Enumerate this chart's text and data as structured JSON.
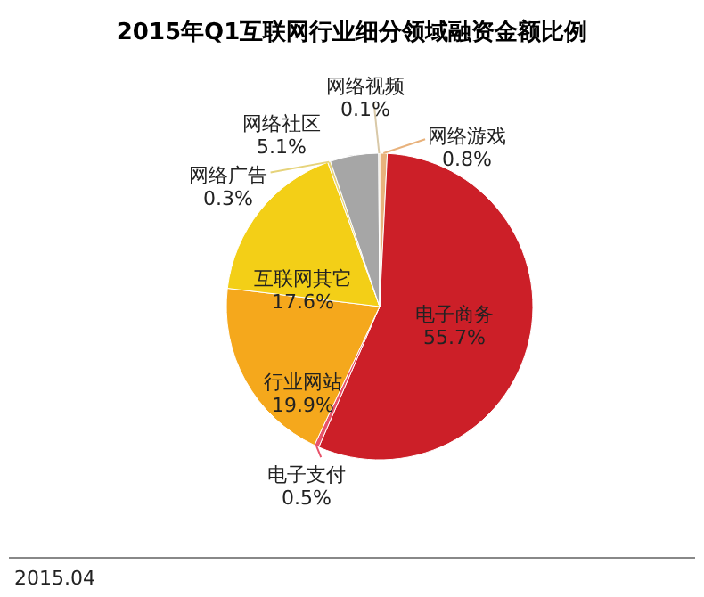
{
  "chart_data": {
    "type": "pie",
    "title": "2015年Q1互联网行业细分领域融资金额比例",
    "categories": [
      "网络游戏",
      "电子商务",
      "电子支付",
      "行业网站",
      "互联网其它",
      "网络广告",
      "网络社区",
      "网络视频"
    ],
    "values": [
      0.8,
      55.7,
      0.5,
      19.9,
      17.6,
      0.3,
      5.1,
      0.1
    ],
    "colors": [
      "#e8b27c",
      "#cc1f28",
      "#e8536a",
      "#f5a81c",
      "#f3cf17",
      "#e6d37a",
      "#a6a6a6",
      "#d9c9a8"
    ],
    "value_labels": [
      "0.8%",
      "55.7%",
      "0.5%",
      "19.9%",
      "17.6%",
      "0.3%",
      "5.1%",
      "0.1%"
    ],
    "annotations": [
      "2015.04"
    ]
  }
}
